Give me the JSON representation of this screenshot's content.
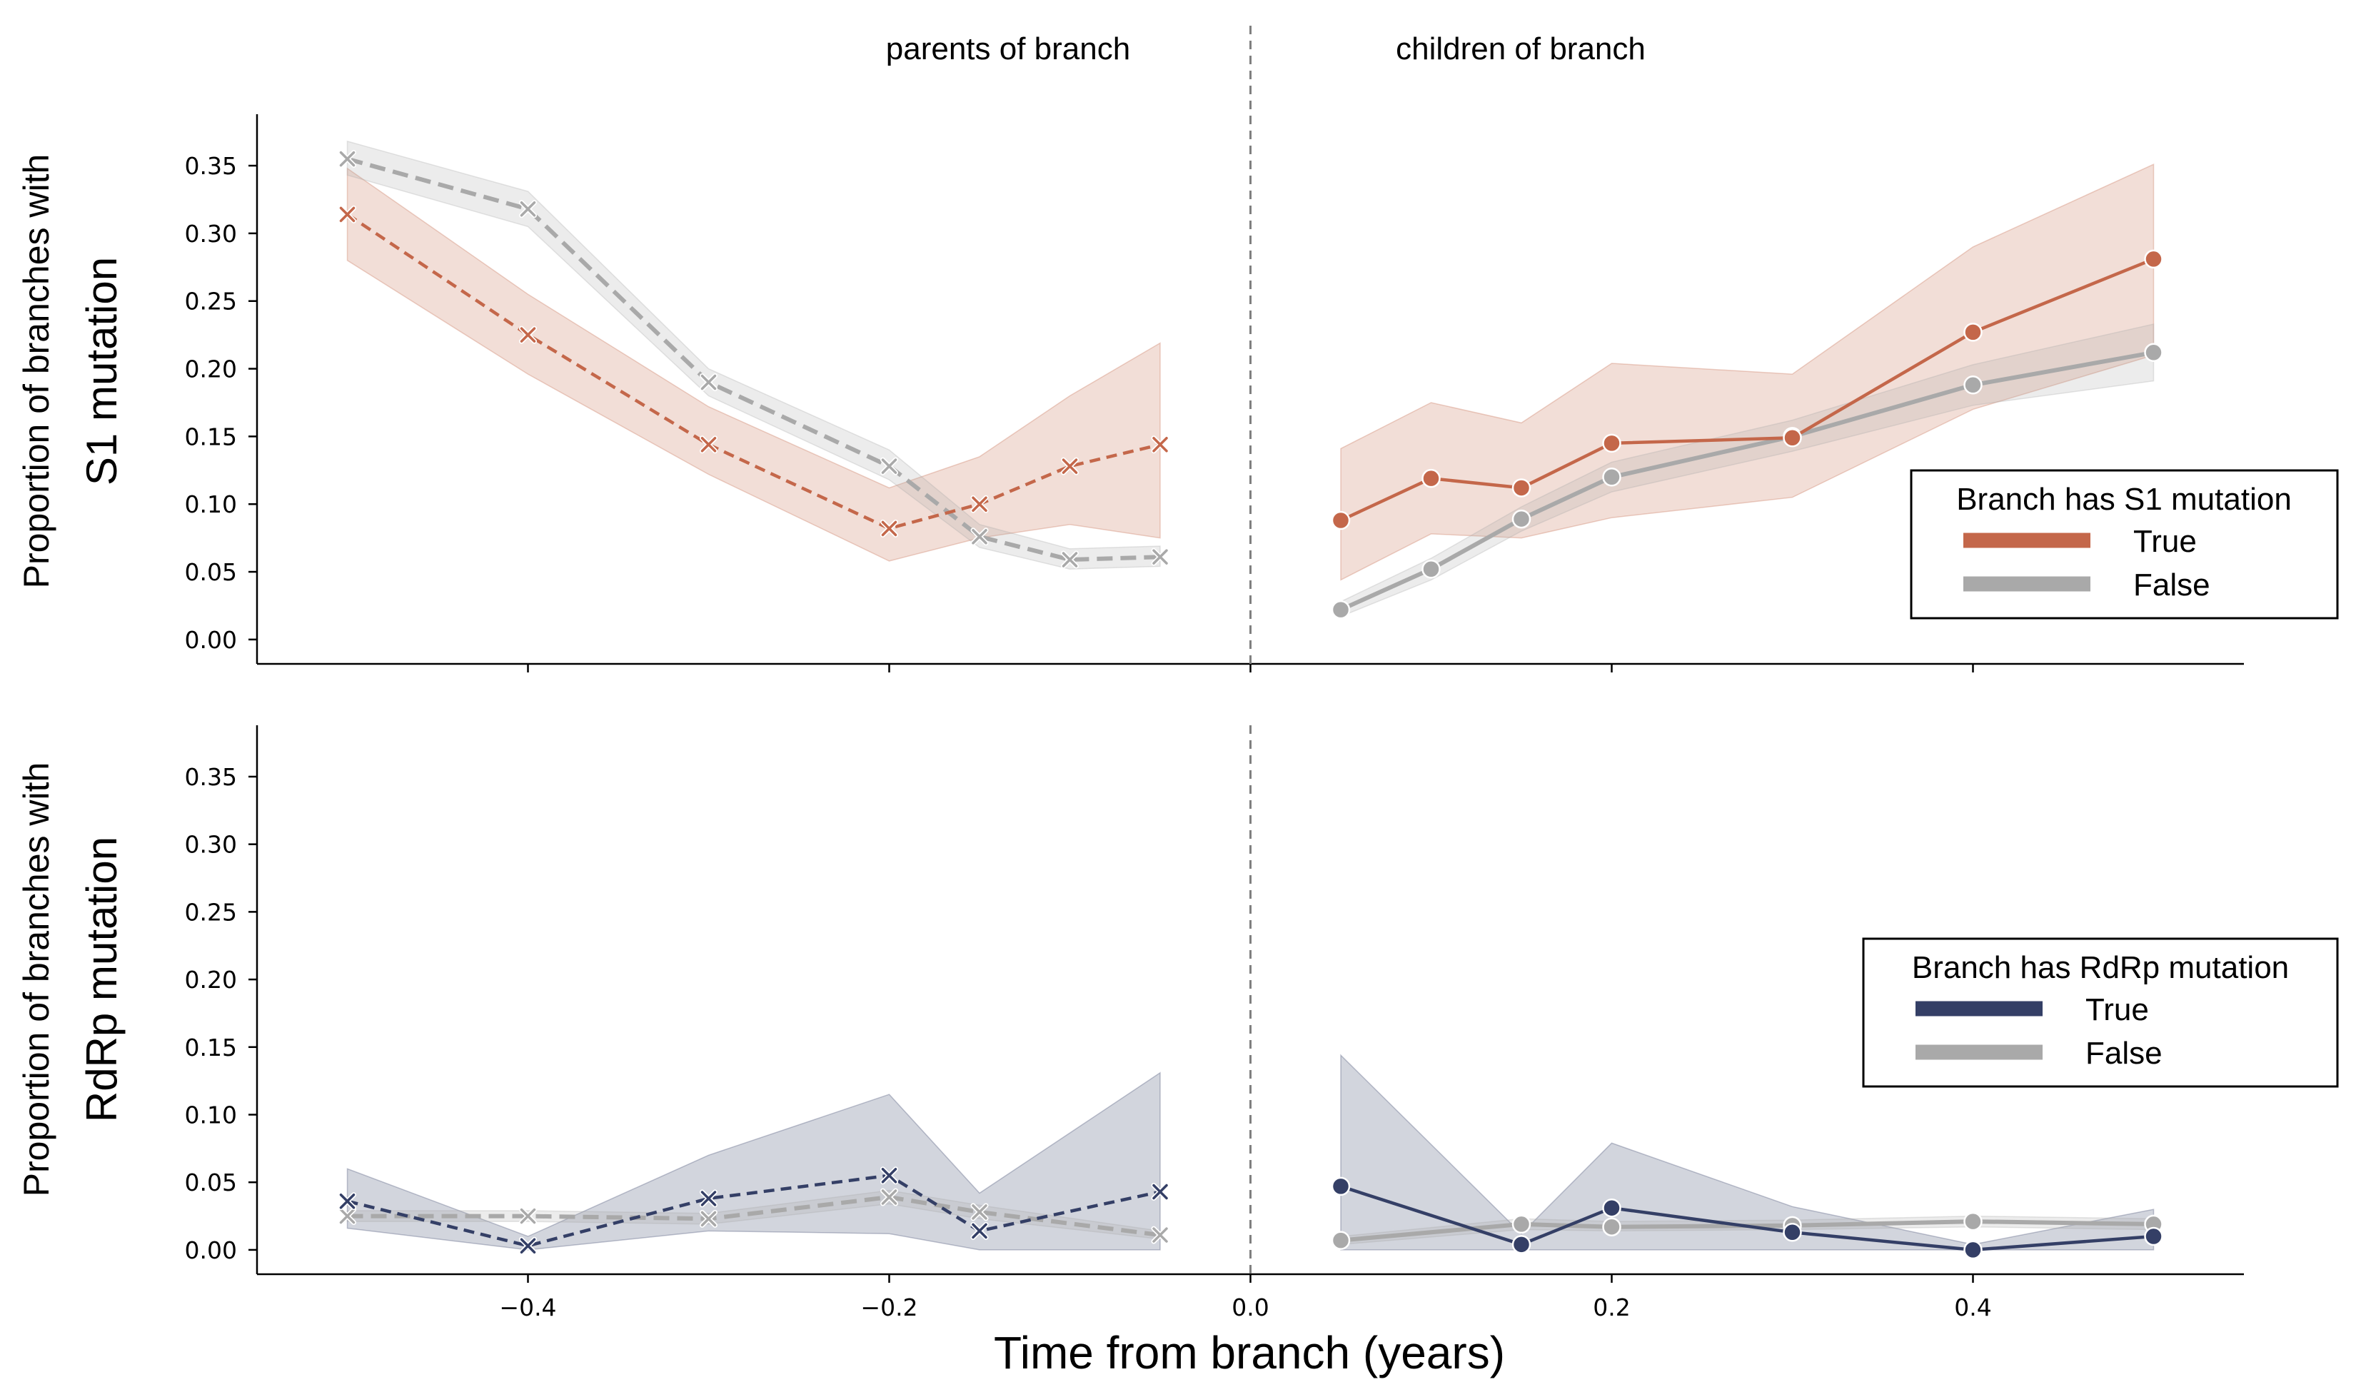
{
  "figure": {
    "xlabel": "Time from branch (years)",
    "annotation_left": "parents of branch",
    "annotation_right": "children of branch"
  },
  "chart_data": [
    {
      "type": "line",
      "panel": "top",
      "ylabel_line1": "Proportion of branches with",
      "ylabel_line2": "S1 mutation",
      "xlim": [
        -0.55,
        0.55
      ],
      "ylim": [
        -0.018,
        0.388
      ],
      "x_ticks": [
        -0.4,
        -0.2,
        0.0,
        0.2,
        0.4
      ],
      "x_tick_labels": [
        "−0.4",
        "−0.2",
        "0.0",
        "0.2",
        "0.4"
      ],
      "y_ticks": [
        0.0,
        0.05,
        0.1,
        0.15,
        0.2,
        0.25,
        0.3,
        0.35
      ],
      "y_tick_labels": [
        "0.00",
        "0.05",
        "0.10",
        "0.15",
        "0.20",
        "0.25",
        "0.30",
        "0.35"
      ],
      "vline_x": 0.0,
      "legend_title": "Branch has S1 mutation",
      "legend_position": "center-right",
      "series": [
        {
          "name": "True",
          "color": "#c4674a",
          "parents_x": [
            -0.5,
            -0.4,
            -0.3,
            -0.2,
            -0.15,
            -0.1,
            -0.05
          ],
          "parents_y": [
            0.314,
            0.225,
            0.144,
            0.082,
            0.1,
            0.128,
            0.144
          ],
          "parents_lower": [
            0.28,
            0.196,
            0.122,
            0.058,
            0.075,
            0.085,
            0.075
          ],
          "parents_upper": [
            0.348,
            0.255,
            0.172,
            0.112,
            0.135,
            0.18,
            0.219
          ],
          "children_x": [
            0.05,
            0.1,
            0.15,
            0.2,
            0.3,
            0.4,
            0.5
          ],
          "children_y": [
            0.088,
            0.119,
            0.112,
            0.145,
            0.149,
            0.227,
            0.281
          ],
          "children_lower": [
            0.044,
            0.078,
            0.075,
            0.09,
            0.105,
            0.17,
            0.21
          ],
          "children_upper": [
            0.141,
            0.175,
            0.16,
            0.204,
            0.196,
            0.29,
            0.351
          ]
        },
        {
          "name": "False",
          "color": "#a9a9a9",
          "parents_x": [
            -0.5,
            -0.4,
            -0.3,
            -0.2,
            -0.15,
            -0.1,
            -0.05
          ],
          "parents_y": [
            0.355,
            0.318,
            0.19,
            0.128,
            0.076,
            0.059,
            0.061
          ],
          "parents_lower": [
            0.343,
            0.305,
            0.18,
            0.118,
            0.068,
            0.052,
            0.054
          ],
          "parents_upper": [
            0.368,
            0.331,
            0.2,
            0.14,
            0.085,
            0.067,
            0.069
          ],
          "children_x": [
            0.05,
            0.1,
            0.15,
            0.2,
            0.3,
            0.4,
            0.5
          ],
          "children_y": [
            0.022,
            0.052,
            0.089,
            0.12,
            0.15,
            0.188,
            0.212
          ],
          "children_lower": [
            0.017,
            0.044,
            0.08,
            0.109,
            0.139,
            0.173,
            0.191
          ],
          "children_upper": [
            0.028,
            0.06,
            0.098,
            0.131,
            0.162,
            0.203,
            0.233
          ]
        }
      ]
    },
    {
      "type": "line",
      "panel": "bottom",
      "ylabel_line1": "Proportion of branches with",
      "ylabel_line2": "RdRp mutation",
      "xlim": [
        -0.55,
        0.55
      ],
      "ylim": [
        -0.018,
        0.388
      ],
      "x_ticks": [
        -0.4,
        -0.2,
        0.0,
        0.2,
        0.4
      ],
      "x_tick_labels": [
        "−0.4",
        "−0.2",
        "0.0",
        "0.2",
        "0.4"
      ],
      "y_ticks": [
        0.0,
        0.05,
        0.1,
        0.15,
        0.2,
        0.25,
        0.3,
        0.35
      ],
      "y_tick_labels": [
        "0.00",
        "0.05",
        "0.10",
        "0.15",
        "0.20",
        "0.25",
        "0.30",
        "0.35"
      ],
      "vline_x": 0.0,
      "legend_title": "Branch has RdRp mutation",
      "legend_position": "center-right",
      "series": [
        {
          "name": "True",
          "color": "#343f66",
          "parents_x": [
            -0.5,
            -0.4,
            -0.3,
            -0.2,
            -0.15,
            -0.05
          ],
          "parents_y": [
            0.036,
            0.003,
            0.038,
            0.055,
            0.014,
            0.043
          ],
          "parents_lower": [
            0.016,
            0.0,
            0.014,
            0.012,
            0.0,
            0.0
          ],
          "parents_upper": [
            0.06,
            0.01,
            0.07,
            0.115,
            0.042,
            0.131
          ],
          "children_x": [
            0.05,
            0.15,
            0.2,
            0.3,
            0.4,
            0.5
          ],
          "children_y": [
            0.047,
            0.004,
            0.031,
            0.013,
            0.0,
            0.01
          ],
          "children_lower": [
            0.0,
            0.0,
            0.0,
            0.0,
            0.0,
            0.0
          ],
          "children_upper": [
            0.144,
            0.012,
            0.079,
            0.032,
            0.004,
            0.03
          ]
        },
        {
          "name": "False",
          "color": "#a9a9a9",
          "parents_x": [
            -0.5,
            -0.4,
            -0.3,
            -0.2,
            -0.15,
            -0.05
          ],
          "parents_y": [
            0.025,
            0.025,
            0.023,
            0.039,
            0.028,
            0.011
          ],
          "parents_lower": [
            0.021,
            0.021,
            0.019,
            0.034,
            0.023,
            0.008
          ],
          "parents_upper": [
            0.029,
            0.029,
            0.027,
            0.044,
            0.033,
            0.014
          ],
          "children_x": [
            0.05,
            0.15,
            0.2,
            0.3,
            0.4,
            0.5
          ],
          "children_y": [
            0.007,
            0.019,
            0.017,
            0.018,
            0.021,
            0.019
          ],
          "children_lower": [
            0.004,
            0.015,
            0.014,
            0.015,
            0.017,
            0.015
          ],
          "children_upper": [
            0.01,
            0.023,
            0.021,
            0.022,
            0.025,
            0.023
          ]
        }
      ]
    }
  ]
}
